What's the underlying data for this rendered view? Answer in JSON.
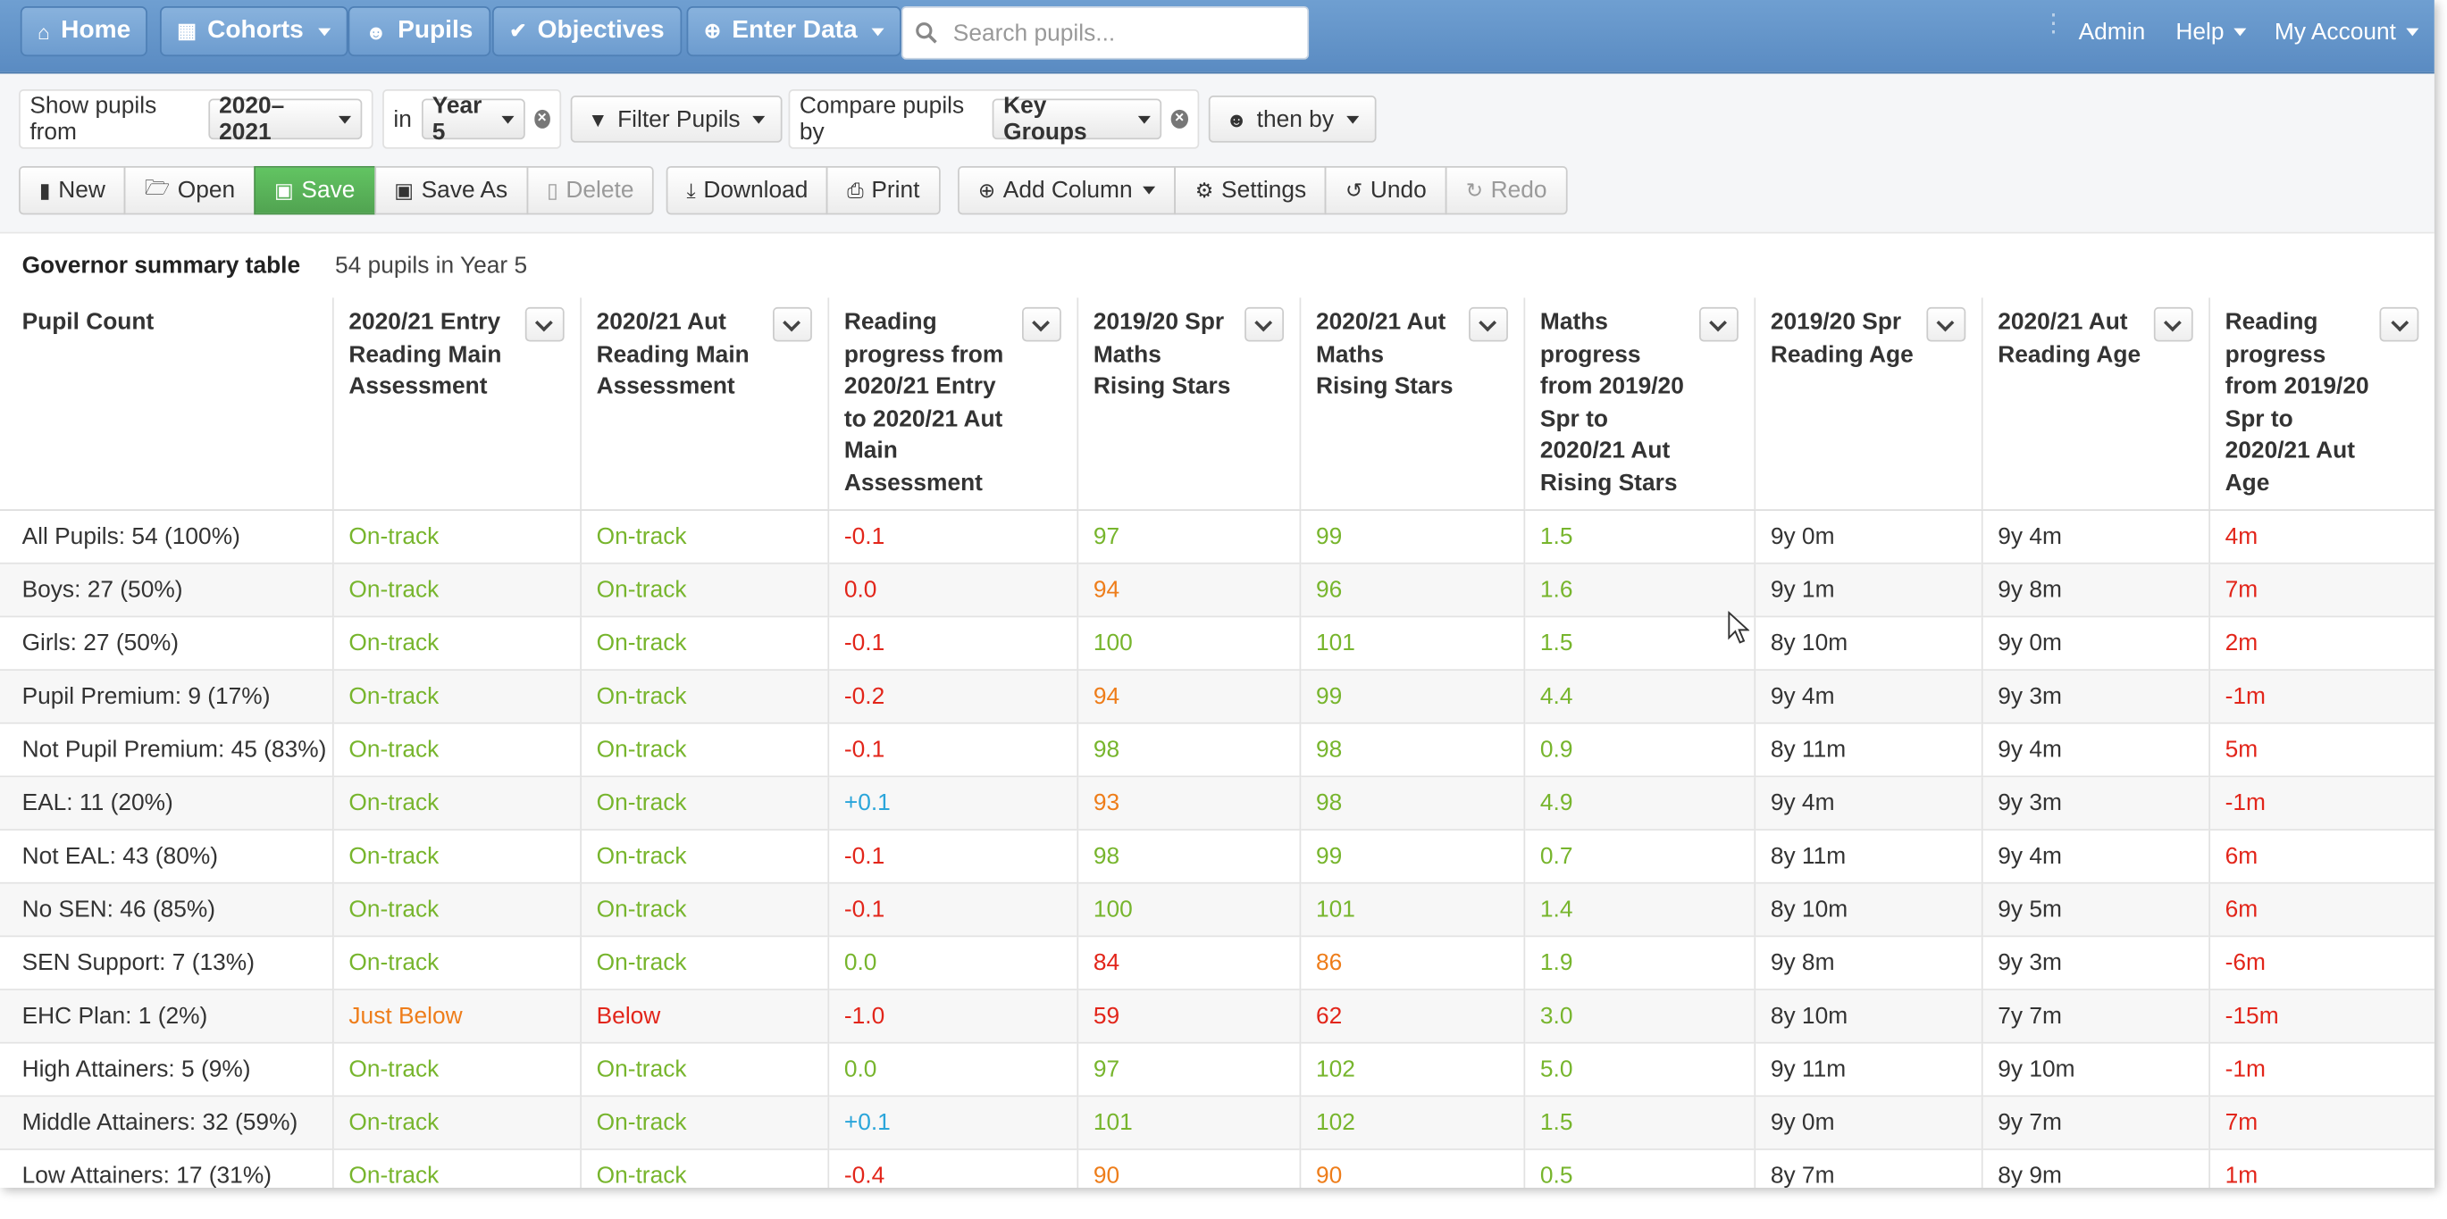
{
  "nav": {
    "home": "Home",
    "cohorts": "Cohorts",
    "pupils": "Pupils",
    "objectives": "Objectives",
    "enter_data": "Enter Data",
    "search_placeholder": "Search pupils...",
    "admin": "Admin",
    "help": "Help",
    "my_account": "My Account"
  },
  "filters": {
    "show_from_label": "Show pupils from",
    "year_value": "2020–2021",
    "in_label": "in",
    "group_value": "Year 5",
    "filter_pupils": "Filter Pupils",
    "compare_label": "Compare pupils by",
    "compare_value": "Key Groups",
    "then_by": "then by"
  },
  "toolbar": {
    "new": "New",
    "open": "Open",
    "save": "Save",
    "save_as": "Save As",
    "delete": "Delete",
    "download": "Download",
    "print": "Print",
    "add_column": "Add Column",
    "settings": "Settings",
    "undo": "Undo",
    "redo": "Redo"
  },
  "table": {
    "title": "Governor summary table",
    "subtitle": "54 pupils in Year 5",
    "headers": [
      "Pupil Count",
      "2020/21 Entry Reading Main Assessment",
      "2020/21 Aut Reading Main Assessment",
      "Reading progress from 2020/21 Entry to 2020/21 Aut Main Assessment",
      "2019/20 Spr Maths Rising Stars",
      "2020/21 Aut Maths Rising Stars",
      "Maths progress from 2019/20 Spr to 2020/21 Aut Rising Stars",
      "2019/20 Spr Reading Age",
      "2020/21 Aut Reading Age",
      "Reading progress from 2019/20 Spr to 2020/21 Aut Age"
    ],
    "rows": [
      [
        "All Pupils: 54 (100%)",
        "On-track",
        "On-track",
        "-0.1",
        "97",
        "99",
        "1.5",
        "9y 0m",
        "9y 4m",
        "4m"
      ],
      [
        "Boys: 27 (50%)",
        "On-track",
        "On-track",
        "0.0",
        "94",
        "96",
        "1.6",
        "9y 1m",
        "9y 8m",
        "7m"
      ],
      [
        "Girls: 27 (50%)",
        "On-track",
        "On-track",
        "-0.1",
        "100",
        "101",
        "1.5",
        "8y 10m",
        "9y 0m",
        "2m"
      ],
      [
        "Pupil Premium: 9 (17%)",
        "On-track",
        "On-track",
        "-0.2",
        "94",
        "99",
        "4.4",
        "9y 4m",
        "9y 3m",
        "-1m"
      ],
      [
        "Not Pupil Premium: 45 (83%)",
        "On-track",
        "On-track",
        "-0.1",
        "98",
        "98",
        "0.9",
        "8y 11m",
        "9y 4m",
        "5m"
      ],
      [
        "EAL: 11 (20%)",
        "On-track",
        "On-track",
        "+0.1",
        "93",
        "98",
        "4.9",
        "9y 4m",
        "9y 3m",
        "-1m"
      ],
      [
        "Not EAL: 43 (80%)",
        "On-track",
        "On-track",
        "-0.1",
        "98",
        "99",
        "0.7",
        "8y 11m",
        "9y 4m",
        "6m"
      ],
      [
        "No SEN: 46 (85%)",
        "On-track",
        "On-track",
        "-0.1",
        "100",
        "101",
        "1.4",
        "8y 10m",
        "9y 5m",
        "6m"
      ],
      [
        "SEN Support: 7 (13%)",
        "On-track",
        "On-track",
        "0.0",
        "84",
        "86",
        "1.9",
        "9y 8m",
        "9y 3m",
        "-6m"
      ],
      [
        "EHC Plan: 1 (2%)",
        "Just Below",
        "Below",
        "-1.0",
        "59",
        "62",
        "3.0",
        "8y 10m",
        "7y 7m",
        "-15m"
      ],
      [
        "High Attainers: 5 (9%)",
        "On-track",
        "On-track",
        "0.0",
        "97",
        "102",
        "5.0",
        "9y 11m",
        "9y 10m",
        "-1m"
      ],
      [
        "Middle Attainers: 32 (59%)",
        "On-track",
        "On-track",
        "+0.1",
        "101",
        "102",
        "1.5",
        "9y 0m",
        "9y 7m",
        "7m"
      ],
      [
        "Low Attainers: 17 (31%)",
        "On-track",
        "On-track",
        "-0.4",
        "90",
        "90",
        "0.5",
        "8y 7m",
        "8y 9m",
        "1m"
      ]
    ],
    "colors": [
      [
        null,
        "green",
        "green",
        "red",
        "green",
        "green",
        "green",
        null,
        null,
        "red"
      ],
      [
        null,
        "green",
        "green",
        "red",
        "orange",
        "green",
        "green",
        null,
        null,
        "red"
      ],
      [
        null,
        "green",
        "green",
        "red",
        "green",
        "green",
        "green",
        null,
        null,
        "red"
      ],
      [
        null,
        "green",
        "green",
        "red",
        "orange",
        "green",
        "green",
        null,
        null,
        "red"
      ],
      [
        null,
        "green",
        "green",
        "red",
        "green",
        "green",
        "green",
        null,
        null,
        "red"
      ],
      [
        null,
        "green",
        "green",
        "blue",
        "orange",
        "green",
        "green",
        null,
        null,
        "red"
      ],
      [
        null,
        "green",
        "green",
        "red",
        "green",
        "green",
        "green",
        null,
        null,
        "red"
      ],
      [
        null,
        "green",
        "green",
        "red",
        "green",
        "green",
        "green",
        null,
        null,
        "red"
      ],
      [
        null,
        "green",
        "green",
        "green",
        "red",
        "orange",
        "green",
        null,
        null,
        "red"
      ],
      [
        null,
        "orange",
        "red",
        "red",
        "red",
        "red",
        "green",
        null,
        null,
        "red"
      ],
      [
        null,
        "green",
        "green",
        "green",
        "green",
        "green",
        "green",
        null,
        null,
        "red"
      ],
      [
        null,
        "green",
        "green",
        "blue",
        "green",
        "green",
        "green",
        null,
        null,
        "red"
      ],
      [
        null,
        "green",
        "green",
        "red",
        "orange",
        "orange",
        "green",
        null,
        null,
        "red"
      ]
    ]
  },
  "theme": {
    "nav_bg": "#6a9bd0",
    "save_green": "#5bb75b",
    "status_green": "#77b52d",
    "status_orange": "#ee7d1a",
    "status_red": "#e2251a",
    "status_blue": "#2aa5da"
  }
}
